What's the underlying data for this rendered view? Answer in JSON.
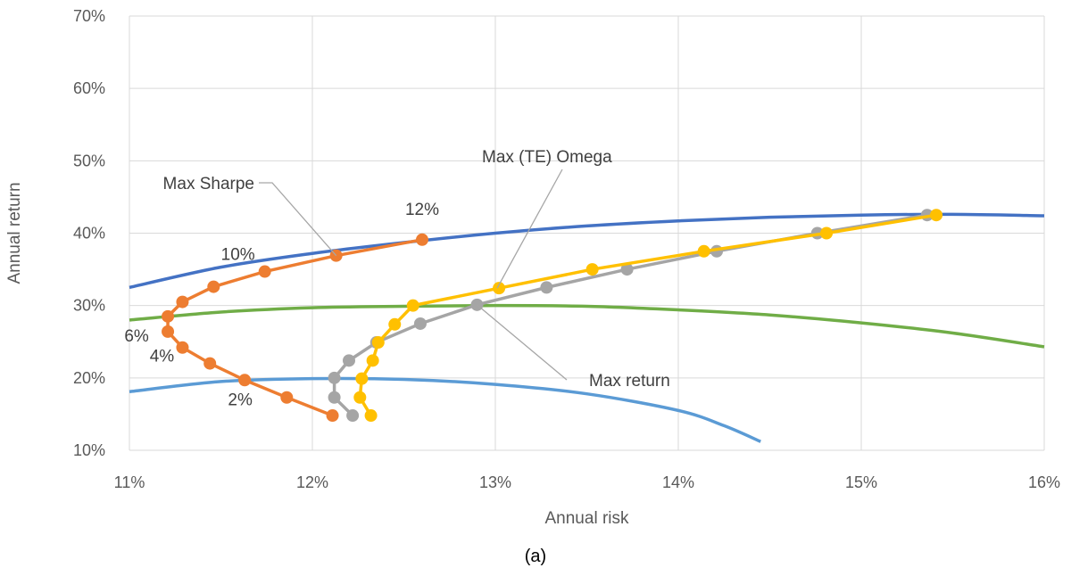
{
  "chart_data": {
    "type": "scatter",
    "caption": "(a)",
    "xlabel": "Annual risk",
    "ylabel": "Annual return",
    "xlim": [
      0.11,
      0.16
    ],
    "ylim": [
      0.1,
      0.7
    ],
    "x_ticks": [
      {
        "value": 0.11,
        "label": "11%"
      },
      {
        "value": 0.12,
        "label": "12%"
      },
      {
        "value": 0.13,
        "label": "13%"
      },
      {
        "value": 0.14,
        "label": "14%"
      },
      {
        "value": 0.15,
        "label": "15%"
      },
      {
        "value": 0.16,
        "label": "16%"
      }
    ],
    "y_ticks": [
      {
        "value": 0.1,
        "label": "10%"
      },
      {
        "value": 0.2,
        "label": "20%"
      },
      {
        "value": 0.3,
        "label": "30%"
      },
      {
        "value": 0.4,
        "label": "40%"
      },
      {
        "value": 0.5,
        "label": "50%"
      },
      {
        "value": 0.6,
        "label": "60%"
      },
      {
        "value": 0.7,
        "label": "70%"
      }
    ],
    "grid": true,
    "legend": "none",
    "curves": [
      {
        "color": "#4472C4",
        "x": [
          0.11,
          0.115,
          0.12,
          0.125,
          0.13,
          0.135,
          0.14,
          0.145,
          0.15,
          0.155,
          0.16
        ],
        "y": [
          0.325,
          0.353,
          0.372,
          0.387,
          0.4,
          0.41,
          0.417,
          0.422,
          0.425,
          0.426,
          0.424
        ]
      },
      {
        "color": "#70AD47",
        "x": [
          0.11,
          0.115,
          0.12,
          0.125,
          0.13,
          0.135,
          0.14,
          0.145,
          0.15,
          0.155,
          0.16
        ],
        "y": [
          0.28,
          0.291,
          0.297,
          0.299,
          0.3,
          0.299,
          0.294,
          0.287,
          0.276,
          0.262,
          0.243
        ]
      },
      {
        "color": "#5B9BD5",
        "x": [
          0.11,
          0.115,
          0.12,
          0.125,
          0.13,
          0.135,
          0.14,
          0.1425,
          0.1445
        ],
        "y": [
          0.181,
          0.195,
          0.199,
          0.198,
          0.191,
          0.178,
          0.155,
          0.134,
          0.112
        ]
      }
    ],
    "series": [
      {
        "color": "#ED7D31",
        "x": [
          0.1211,
          0.1186,
          0.1163,
          0.1144,
          0.1129,
          0.1121,
          0.1121,
          0.1129,
          0.1146,
          0.1174,
          0.1213,
          0.126
        ],
        "y": [
          0.148,
          0.173,
          0.197,
          0.22,
          0.242,
          0.264,
          0.285,
          0.305,
          0.326,
          0.347,
          0.369,
          0.391
        ]
      },
      {
        "color": "#A5A5A5",
        "x": [
          0.1222,
          0.1212,
          0.1212,
          0.122,
          0.1235,
          0.1259,
          0.129,
          0.1328,
          0.1372,
          0.1421,
          0.1476,
          0.1536
        ],
        "y": [
          0.148,
          0.173,
          0.2,
          0.224,
          0.249,
          0.275,
          0.301,
          0.325,
          0.35,
          0.375,
          0.4,
          0.425
        ]
      },
      {
        "color": "#FFC000",
        "x": [
          0.1232,
          0.1226,
          0.1227,
          0.1233,
          0.1236,
          0.1245,
          0.1255,
          0.1302,
          0.1353,
          0.1414,
          0.1481,
          0.1541
        ],
        "y": [
          0.148,
          0.173,
          0.199,
          0.224,
          0.249,
          0.274,
          0.3,
          0.324,
          0.35,
          0.375,
          0.4,
          0.425
        ]
      }
    ],
    "annotations": [
      {
        "text": "Max Sharpe",
        "point": [
          0.1213,
          0.369
        ],
        "label_anchor": "end"
      },
      {
        "text": "Max (TE) Omega",
        "point": [
          0.1301,
          0.324
        ],
        "label_anchor": "start"
      },
      {
        "text": "Max return",
        "point": [
          0.129,
          0.301
        ],
        "label_anchor": "start"
      }
    ],
    "point_labels": [
      {
        "text": "12%",
        "point": [
          0.126,
          0.391
        ]
      },
      {
        "text": "10%",
        "point": [
          0.1174,
          0.347
        ]
      },
      {
        "text": "6%",
        "point": [
          0.1121,
          0.285
        ]
      },
      {
        "text": "4%",
        "point": [
          0.1129,
          0.242
        ]
      },
      {
        "text": "2%",
        "point": [
          0.1163,
          0.197
        ]
      }
    ]
  }
}
